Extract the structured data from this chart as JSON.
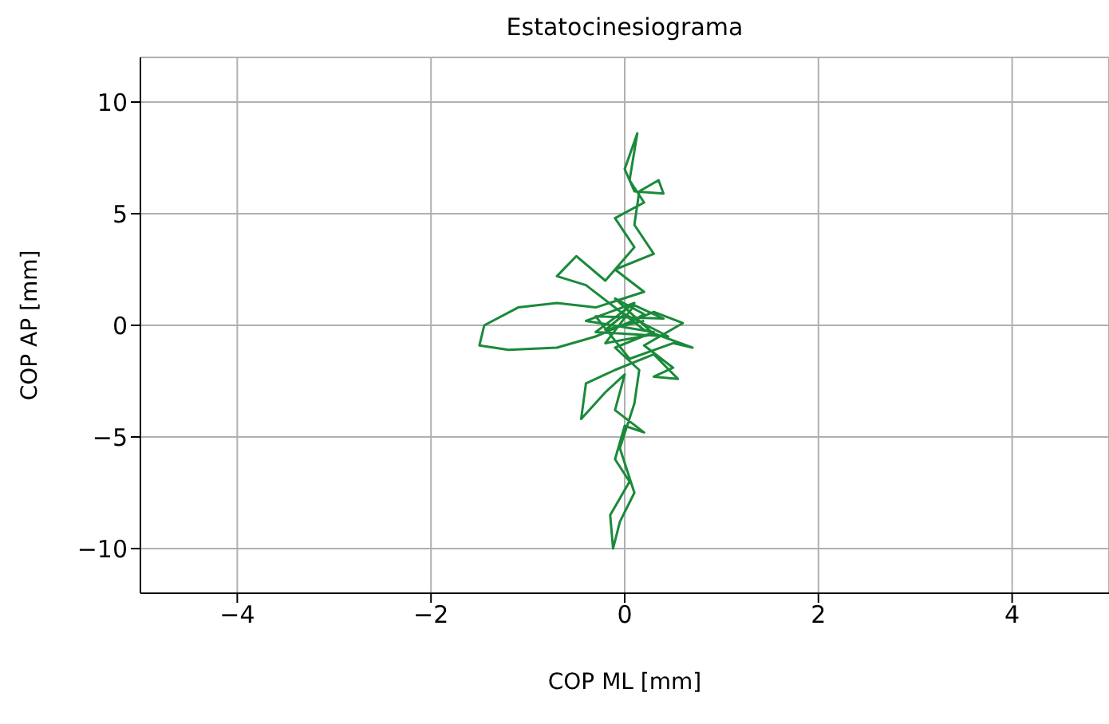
{
  "chart_data": {
    "type": "line",
    "title": "Estatocinesiograma",
    "xlabel": "COP ML [mm]",
    "ylabel": "COP AP [mm]",
    "xlim": [
      -5,
      5
    ],
    "ylim": [
      -12,
      12
    ],
    "xticks": [
      -4,
      -2,
      0,
      2,
      4
    ],
    "yticks": [
      -10,
      -5,
      0,
      5,
      10
    ],
    "grid": true,
    "series": [
      {
        "color": "#1a8a3a",
        "x": [
          0,
          0.2,
          -0.1,
          0.3,
          -0.2,
          0.1,
          0.4,
          -0.3,
          0.05,
          0.5,
          0.7,
          0.2,
          -0.4,
          -0.7,
          -0.5,
          -0.2,
          0.1,
          -0.1,
          0.2,
          0.05,
          0.13,
          0,
          0.1,
          0.4,
          0.35,
          0.15,
          0.1,
          0.3,
          -0.1,
          0.2,
          -0.3,
          -0.7,
          -1.1,
          -1.45,
          -1.5,
          -1.2,
          -0.7,
          -0.3,
          0.3,
          0.6,
          0.2,
          0.5,
          0.3,
          0.55,
          0.3,
          -0.1,
          -0.4,
          -0.45,
          -0.2,
          0,
          -0.1,
          0.2,
          0,
          -0.1,
          0.05,
          -0.15,
          -0.12,
          -0.05,
          0.1,
          -0.05,
          0.1,
          0.15,
          -0.1,
          0.3,
          -0.4,
          0.1,
          -0.3,
          0.45,
          0,
          -0.2,
          0.2
        ],
        "values": [
          0,
          0.5,
          1.2,
          -0.4,
          -0.8,
          0.9,
          0.3,
          0.4,
          -1.5,
          -0.8,
          -1,
          -0.2,
          1.8,
          2.2,
          3.1,
          2,
          3.5,
          4.8,
          5.5,
          6.5,
          8.6,
          7,
          6,
          5.9,
          6.5,
          6,
          4.5,
          3.2,
          2.5,
          1.5,
          0.8,
          1,
          0.8,
          0,
          -0.9,
          -1.1,
          -1,
          -0.5,
          0.6,
          0.1,
          -0.9,
          -1.9,
          -2.3,
          -2.4,
          -1.3,
          -2,
          -2.6,
          -4.2,
          -3,
          -2.2,
          -3.8,
          -4.8,
          -4.5,
          -6,
          -7,
          -8.5,
          -10,
          -8.8,
          -7.5,
          -5.5,
          -3.5,
          -2,
          -1,
          -0.3,
          0.2,
          1,
          -0.3,
          -0.5,
          0.5,
          -0.2,
          0.2
        ]
      }
    ]
  }
}
